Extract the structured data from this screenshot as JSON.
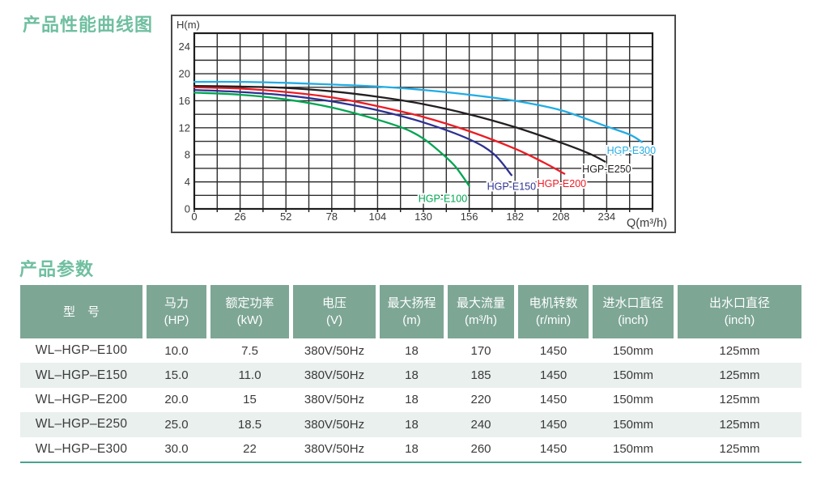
{
  "sections": {
    "chart_title": "产品性能曲线图",
    "table_title": "产品参数"
  },
  "colors": {
    "title_green": "#6fbfa0",
    "header_bg": "#7da695",
    "stripe_bg": "#e9f0ed",
    "table_text": "#3b3b3b",
    "table_bottom_line": "#4ba28e",
    "axis_text": "#3a3a3a",
    "grid_line": "#2e2e2e",
    "chart_frame": "#4a4a4a"
  },
  "chart_data": {
    "type": "line",
    "title": "",
    "ylabel": "H(m)",
    "xlabel": "Q(m³/h)",
    "xlim": [
      0,
      260
    ],
    "ylim": [
      0,
      26
    ],
    "x_tick_labels": [
      0,
      26,
      52,
      78,
      104,
      130,
      156,
      182,
      208,
      234
    ],
    "x_grid_step": 13,
    "y_tick_labels": [
      0,
      4,
      8,
      12,
      16,
      20,
      24
    ],
    "y_grid_step": 2,
    "grid": true,
    "legend_position": "inline-labels",
    "series": [
      {
        "name": "HGP-E100",
        "color": "#00a551",
        "label_at": [
          141,
          1.5
        ],
        "points": [
          [
            0,
            17.2
          ],
          [
            26,
            16.9
          ],
          [
            52,
            16.2
          ],
          [
            78,
            15.0
          ],
          [
            104,
            13.2
          ],
          [
            120,
            11.8
          ],
          [
            130,
            10.4
          ],
          [
            140,
            8.3
          ],
          [
            148,
            6.3
          ],
          [
            156,
            3.4
          ]
        ]
      },
      {
        "name": "HGP-E150",
        "color": "#2e3192",
        "label_at": [
          180,
          3.3
        ],
        "points": [
          [
            0,
            17.6
          ],
          [
            26,
            17.3
          ],
          [
            52,
            16.8
          ],
          [
            78,
            15.9
          ],
          [
            104,
            14.6
          ],
          [
            130,
            12.8
          ],
          [
            156,
            10.3
          ],
          [
            170,
            8.1
          ],
          [
            180,
            5.0
          ]
        ]
      },
      {
        "name": "HGP-E200",
        "color": "#ec1c24",
        "label_at": [
          208.5,
          3.7
        ],
        "points": [
          [
            0,
            18.0
          ],
          [
            26,
            17.8
          ],
          [
            52,
            17.3
          ],
          [
            78,
            16.5
          ],
          [
            104,
            15.2
          ],
          [
            130,
            13.6
          ],
          [
            156,
            11.5
          ],
          [
            182,
            8.9
          ],
          [
            198,
            6.9
          ],
          [
            210,
            5.2
          ]
        ]
      },
      {
        "name": "HGP-E250",
        "color": "#231f20",
        "label_at": [
          234,
          5.9
        ],
        "points": [
          [
            0,
            18.2
          ],
          [
            26,
            18.1
          ],
          [
            52,
            17.9
          ],
          [
            78,
            17.4
          ],
          [
            104,
            16.6
          ],
          [
            130,
            15.5
          ],
          [
            156,
            14.0
          ],
          [
            182,
            12.1
          ],
          [
            208,
            9.8
          ],
          [
            224,
            8.2
          ],
          [
            233,
            7.0
          ]
        ]
      },
      {
        "name": "HGP-E300",
        "color": "#21ace4",
        "label_at": [
          248,
          8.6
        ],
        "points": [
          [
            0,
            18.8
          ],
          [
            26,
            18.8
          ],
          [
            52,
            18.65
          ],
          [
            78,
            18.4
          ],
          [
            104,
            18.1
          ],
          [
            130,
            17.6
          ],
          [
            156,
            16.9
          ],
          [
            182,
            16.0
          ],
          [
            208,
            14.6
          ],
          [
            234,
            12.2
          ],
          [
            247,
            11.0
          ],
          [
            254,
            9.9
          ]
        ]
      }
    ]
  },
  "table": {
    "headers": [
      {
        "title": "型　号",
        "unit": ""
      },
      {
        "title": "马力",
        "unit": "(HP)"
      },
      {
        "title": "额定功率",
        "unit": "(kW)"
      },
      {
        "title": "电压",
        "unit": "(V)"
      },
      {
        "title": "最大扬程",
        "unit": "(m)"
      },
      {
        "title": "最大流量",
        "unit": "(m³/h)"
      },
      {
        "title": "电机转数",
        "unit": "(r/min)"
      },
      {
        "title": "进水口直径",
        "unit": "(inch)"
      },
      {
        "title": "出水口直径",
        "unit": "(inch)"
      }
    ],
    "rows": [
      [
        "WL–HGP–E100",
        "10.0",
        "7.5",
        "380V/50Hz",
        "18",
        "170",
        "1450",
        "150mm",
        "125mm"
      ],
      [
        "WL–HGP–E150",
        "15.0",
        "11.0",
        "380V/50Hz",
        "18",
        "185",
        "1450",
        "150mm",
        "125mm"
      ],
      [
        "WL–HGP–E200",
        "20.0",
        "15",
        "380V/50Hz",
        "18",
        "220",
        "1450",
        "150mm",
        "125mm"
      ],
      [
        "WL–HGP–E250",
        "25.0",
        "18.5",
        "380V/50Hz",
        "18",
        "240",
        "1450",
        "150mm",
        "125mm"
      ],
      [
        "WL–HGP–E300",
        "30.0",
        "22",
        "380V/50Hz",
        "18",
        "260",
        "1450",
        "150mm",
        "125mm"
      ]
    ]
  }
}
